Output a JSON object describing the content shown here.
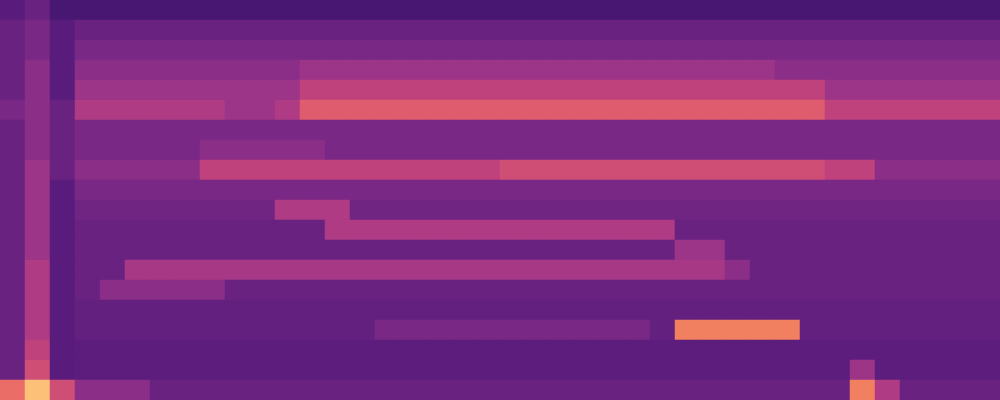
{
  "chart_data": {
    "type": "heatmap",
    "tick_labels": false,
    "color_range": [
      0,
      9
    ],
    "cells": [
      [
        2.5,
        3,
        2,
        2,
        2,
        2,
        2,
        2,
        2,
        2,
        2,
        2,
        2,
        2,
        2,
        2,
        2,
        2,
        2,
        2,
        2,
        2,
        2,
        2,
        2,
        2,
        2,
        2,
        2,
        2,
        2,
        2,
        2,
        2,
        2,
        2,
        2,
        2,
        2,
        2
      ],
      [
        3,
        3.5,
        2.5,
        3,
        3,
        3,
        3,
        3,
        3,
        3,
        3,
        3,
        3,
        3,
        3,
        3,
        3,
        3,
        3,
        3,
        3,
        3,
        3,
        3,
        3,
        3,
        3,
        3,
        3,
        3,
        3,
        3,
        3,
        3,
        3,
        3,
        3,
        3,
        3,
        3
      ],
      [
        3,
        3.5,
        2.5,
        3.5,
        3.5,
        3.5,
        3.5,
        3.5,
        3.5,
        3.5,
        3.5,
        3.5,
        3.5,
        3.5,
        3.5,
        3.5,
        3.5,
        3.5,
        3.5,
        3.5,
        3.5,
        3.5,
        3.5,
        3.5,
        3.5,
        3.5,
        3.5,
        3.5,
        3.5,
        3.5,
        3.5,
        3.5,
        3.5,
        3.5,
        3.5,
        3.5,
        3.5,
        3.5,
        3.5,
        3.5
      ],
      [
        3,
        4,
        2.5,
        4,
        4,
        4,
        4,
        4,
        4,
        4,
        4,
        4,
        4.5,
        4.5,
        4.5,
        4.5,
        4.5,
        4.5,
        4.5,
        4.5,
        4.5,
        4.5,
        4.5,
        4.5,
        4.5,
        4.5,
        4.5,
        4.5,
        4.5,
        4.5,
        4.5,
        4,
        4,
        4,
        4,
        4,
        4,
        4,
        4,
        4
      ],
      [
        3,
        4,
        2.5,
        4.5,
        4.5,
        4.5,
        4.5,
        4.5,
        4.5,
        4.5,
        4.5,
        4.5,
        5.5,
        5.5,
        5.5,
        5.5,
        5.5,
        5.5,
        5.5,
        5.5,
        5.5,
        5.5,
        5.5,
        5.5,
        5.5,
        5.5,
        5.5,
        5.5,
        5.5,
        5.5,
        5.5,
        5.5,
        5.5,
        4.5,
        4.5,
        4.5,
        4.5,
        4.5,
        4.5,
        4.5
      ],
      [
        3.5,
        4,
        3,
        5,
        5,
        5,
        5,
        5,
        5,
        4.5,
        4.5,
        5,
        6.5,
        6.5,
        6.5,
        6.5,
        6.5,
        6.5,
        6.5,
        6.5,
        6.5,
        6.5,
        6.5,
        6.5,
        6.5,
        6.5,
        6.5,
        6.5,
        6.5,
        6.5,
        6.5,
        6.5,
        6.5,
        5.5,
        5.5,
        5.5,
        5.5,
        5.5,
        5.5,
        5.5
      ],
      [
        3,
        4,
        3,
        3.5,
        3.5,
        3.5,
        3.5,
        3.5,
        3.5,
        3.5,
        3.5,
        3.5,
        3.5,
        3.5,
        3.5,
        3.5,
        3.5,
        3.5,
        3.5,
        3.5,
        3.5,
        3.5,
        3.5,
        3.5,
        3.5,
        3.5,
        3.5,
        3.5,
        3.5,
        3.5,
        3.5,
        3.5,
        3.5,
        3.5,
        3.5,
        3.5,
        3.5,
        3.5,
        3.5,
        3.5
      ],
      [
        3,
        4,
        3,
        3.5,
        3.5,
        3.5,
        3.5,
        3.5,
        4,
        4,
        4,
        4,
        4,
        3.5,
        3.5,
        3.5,
        3.5,
        3.5,
        3.5,
        3.5,
        3.5,
        3.5,
        3.5,
        3.5,
        3.5,
        3.5,
        3.5,
        3.5,
        3.5,
        3.5,
        3.5,
        3.5,
        3.5,
        3.5,
        3.5,
        3.5,
        3.5,
        3.5,
        3.5,
        3.5
      ],
      [
        3,
        4.5,
        3,
        4,
        4,
        4,
        4,
        4,
        5.5,
        5.5,
        5.5,
        5.5,
        5.5,
        5.5,
        5.5,
        5.5,
        5.5,
        5.5,
        5.5,
        5.5,
        6,
        6,
        6,
        6,
        6,
        6,
        6,
        6,
        6,
        6,
        6,
        6,
        6,
        5.5,
        5.5,
        4,
        4,
        4,
        4,
        4
      ],
      [
        3,
        4.5,
        2.5,
        3.5,
        3.5,
        3.5,
        3.5,
        3.5,
        3.5,
        3.5,
        3.5,
        3.5,
        3.5,
        3.5,
        3.5,
        3.5,
        3.5,
        3.5,
        3.5,
        3.5,
        3.5,
        3.5,
        3.5,
        3.5,
        3.5,
        3.5,
        3.5,
        3.5,
        3.5,
        3.5,
        3.5,
        3.5,
        3.5,
        3.5,
        3.5,
        3.5,
        3.5,
        3.5,
        3.5,
        3.5
      ],
      [
        3,
        4.5,
        2.5,
        3.2,
        3.2,
        3.2,
        3.2,
        3.2,
        3.2,
        3.2,
        3.2,
        5,
        5,
        5,
        3.2,
        3.2,
        3.2,
        3.2,
        3.2,
        3.2,
        3.2,
        3.2,
        3.2,
        3.2,
        3.2,
        3.2,
        3.2,
        3.2,
        3.2,
        3.2,
        3.2,
        3.2,
        3.2,
        3.2,
        3.2,
        3.2,
        3.2,
        3.2,
        3.2,
        3.2
      ],
      [
        3,
        4.5,
        2.5,
        3,
        3,
        3,
        3,
        3,
        3,
        3,
        3,
        3,
        3,
        5,
        5,
        5,
        5,
        5,
        5,
        5,
        5,
        5,
        5,
        5,
        5,
        5,
        5,
        3,
        3,
        3,
        3,
        3,
        3,
        3,
        3,
        3,
        3,
        3,
        3,
        3
      ],
      [
        3,
        4.5,
        2.5,
        3,
        3,
        3,
        3,
        3,
        3,
        3,
        3,
        3,
        3,
        3,
        3,
        3,
        3,
        3,
        3,
        3,
        3,
        3,
        3,
        3,
        3,
        3,
        3,
        4.5,
        4.5,
        3,
        3,
        3,
        3,
        3,
        3,
        3,
        3,
        3,
        3,
        3
      ],
      [
        3,
        5,
        2.5,
        3,
        3,
        4.8,
        4.8,
        4.8,
        4.8,
        4.8,
        4.8,
        4.8,
        4.8,
        4.8,
        4.8,
        4.8,
        4.8,
        4.8,
        4.8,
        4.8,
        4.8,
        4.8,
        4.8,
        4.8,
        4.8,
        4.8,
        4.8,
        4.8,
        4.8,
        4,
        3,
        3,
        3,
        3,
        3,
        3,
        3,
        3,
        3,
        3
      ],
      [
        3,
        5,
        2.5,
        3,
        4,
        4,
        4,
        4,
        4,
        3,
        3,
        3,
        3,
        3,
        3,
        3,
        3,
        3,
        3,
        3,
        3,
        3,
        3,
        3,
        3,
        3,
        3,
        3,
        3,
        3,
        3,
        3,
        3,
        3,
        3,
        3,
        3,
        3,
        3,
        3
      ],
      [
        3,
        5,
        2.5,
        2.8,
        2.8,
        2.8,
        2.8,
        2.8,
        2.8,
        2.8,
        2.8,
        2.8,
        2.8,
        2.8,
        2.8,
        2.8,
        2.8,
        2.8,
        2.8,
        2.8,
        2.8,
        2.8,
        2.8,
        2.8,
        2.8,
        2.8,
        2.8,
        2.8,
        2.8,
        2.8,
        2.8,
        2.8,
        2.8,
        2.8,
        2.8,
        2.8,
        2.8,
        2.8,
        2.8,
        2.8
      ],
      [
        3,
        5,
        2.5,
        2.8,
        2.8,
        2.8,
        2.8,
        2.8,
        2.8,
        2.8,
        2.8,
        2.8,
        2.8,
        2.8,
        2.8,
        3.5,
        3.5,
        3.5,
        3.5,
        3.5,
        3.5,
        3.5,
        3.5,
        3.5,
        3.5,
        3.5,
        2.8,
        7.5,
        7.5,
        7.5,
        7.5,
        7.5,
        2.8,
        2.8,
        2.8,
        2.8,
        2.8,
        2.8,
        2.8,
        2.8
      ],
      [
        3,
        5.5,
        2.5,
        2.6,
        2.6,
        2.6,
        2.6,
        2.6,
        2.6,
        2.6,
        2.6,
        2.6,
        2.6,
        2.6,
        2.6,
        2.6,
        2.6,
        2.6,
        2.6,
        2.6,
        2.6,
        2.6,
        2.6,
        2.6,
        2.6,
        2.6,
        2.6,
        2.6,
        2.6,
        2.6,
        2.6,
        2.6,
        2.6,
        2.6,
        2.6,
        2.6,
        2.6,
        2.6,
        2.6,
        2.6
      ],
      [
        3,
        6,
        2.5,
        2.6,
        2.6,
        2.6,
        2.6,
        2.6,
        2.6,
        2.6,
        2.6,
        2.6,
        2.6,
        2.6,
        2.6,
        2.6,
        2.6,
        2.6,
        2.6,
        2.6,
        2.6,
        2.6,
        2.6,
        2.6,
        2.6,
        2.6,
        2.6,
        2.6,
        2.6,
        2.6,
        2.6,
        2.6,
        2.6,
        2.6,
        4.5,
        2.6,
        2.6,
        2.6,
        2.6,
        2.6
      ],
      [
        7,
        9,
        6,
        4,
        4,
        4,
        3,
        3,
        3,
        3,
        3,
        3,
        3,
        3,
        3,
        3,
        3,
        3,
        3,
        3,
        3,
        3,
        3,
        3,
        3,
        3,
        3,
        3,
        3,
        3,
        3,
        3,
        3,
        3,
        7.5,
        5,
        3,
        3,
        3,
        3
      ]
    ]
  }
}
